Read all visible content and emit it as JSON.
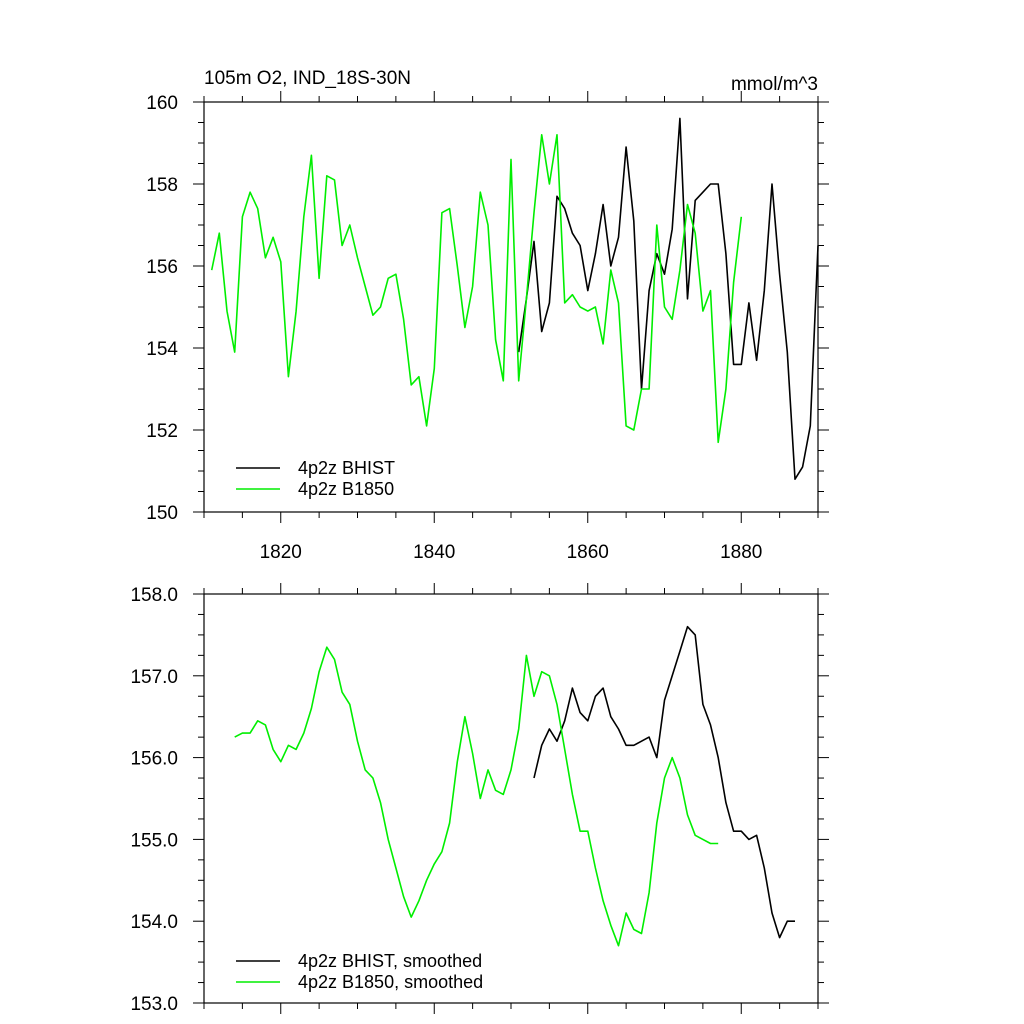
{
  "chart_data": [
    {
      "type": "line",
      "title": "105m O2, IND_18S-30N",
      "units": "mmol/m^3",
      "xlabel": "",
      "ylabel": "",
      "xlim": [
        1810,
        1890
      ],
      "ylim": [
        150,
        160
      ],
      "x_ticks": [
        1820,
        1840,
        1860,
        1880
      ],
      "y_ticks": [
        150,
        152,
        154,
        156,
        158,
        160
      ],
      "grid": false,
      "legend_position": "bottom-left",
      "series": [
        {
          "name": "4p2z BHIST",
          "color": "#000000",
          "x": [
            1851,
            1852,
            1853,
            1854,
            1855,
            1856,
            1857,
            1858,
            1859,
            1860,
            1861,
            1862,
            1863,
            1864,
            1865,
            1866,
            1867,
            1868,
            1869,
            1870,
            1871,
            1872,
            1873,
            1874,
            1875,
            1876,
            1877,
            1878,
            1879,
            1880,
            1881,
            1882,
            1883,
            1884,
            1885,
            1886,
            1887,
            1888,
            1889,
            1890
          ],
          "y": [
            153.9,
            155.2,
            156.6,
            154.4,
            155.1,
            157.7,
            157.4,
            156.8,
            156.5,
            155.4,
            156.3,
            157.5,
            156.0,
            156.7,
            158.9,
            157.1,
            153.0,
            155.4,
            156.3,
            155.8,
            156.9,
            159.6,
            155.2,
            157.6,
            157.8,
            158.0,
            158.0,
            156.3,
            153.6,
            153.6,
            155.1,
            153.7,
            155.4,
            158.0,
            155.8,
            153.9,
            150.8,
            151.1,
            152.1,
            156.5
          ]
        },
        {
          "name": "4p2z B1850",
          "color": "#00ee00",
          "x": [
            1811,
            1812,
            1813,
            1814,
            1815,
            1816,
            1817,
            1818,
            1819,
            1820,
            1821,
            1822,
            1823,
            1824,
            1825,
            1826,
            1827,
            1828,
            1829,
            1830,
            1831,
            1832,
            1833,
            1834,
            1835,
            1836,
            1837,
            1838,
            1839,
            1840,
            1841,
            1842,
            1843,
            1844,
            1845,
            1846,
            1847,
            1848,
            1849,
            1850,
            1851,
            1852,
            1853,
            1854,
            1855,
            1856,
            1857,
            1858,
            1859,
            1860,
            1861,
            1862,
            1863,
            1864,
            1865,
            1866,
            1867,
            1868,
            1869,
            1870,
            1871,
            1872,
            1873,
            1874,
            1875,
            1876,
            1877,
            1878,
            1879,
            1880
          ],
          "y": [
            155.9,
            156.8,
            154.9,
            153.9,
            157.2,
            157.8,
            157.4,
            156.2,
            156.7,
            156.1,
            153.3,
            154.9,
            157.2,
            158.7,
            155.7,
            158.2,
            158.1,
            156.5,
            157.0,
            156.2,
            155.5,
            154.8,
            155.0,
            155.7,
            155.8,
            154.7,
            153.1,
            153.3,
            152.1,
            153.5,
            157.3,
            157.4,
            156.0,
            154.5,
            155.5,
            157.8,
            157.0,
            154.2,
            153.2,
            158.6,
            153.2,
            155.2,
            157.3,
            159.2,
            158.0,
            159.2,
            155.1,
            155.3,
            155.0,
            154.9,
            155.0,
            154.1,
            155.9,
            155.1,
            152.1,
            152.0,
            153.0,
            153.0,
            157.0,
            155.0,
            154.7,
            155.9,
            157.5,
            156.8,
            154.9,
            155.4,
            151.7,
            153.0,
            155.6,
            157.2
          ]
        }
      ]
    },
    {
      "type": "line",
      "title": "",
      "xlabel": "",
      "ylabel": "",
      "xlim": [
        1810,
        1890
      ],
      "ylim": [
        153.0,
        158.0
      ],
      "x_ticks": [
        1820,
        1840,
        1860,
        1880
      ],
      "y_ticks": [
        "153.0",
        "154.0",
        "155.0",
        "156.0",
        "157.0",
        "158.0"
      ],
      "grid": false,
      "legend_position": "bottom-left",
      "series": [
        {
          "name": "4p2z BHIST, smoothed",
          "color": "#000000",
          "x": [
            1853,
            1854,
            1855,
            1856,
            1857,
            1858,
            1859,
            1860,
            1861,
            1862,
            1863,
            1864,
            1865,
            1866,
            1867,
            1868,
            1869,
            1870,
            1871,
            1872,
            1873,
            1874,
            1875,
            1876,
            1877,
            1878,
            1879,
            1880,
            1881,
            1882,
            1883,
            1884,
            1885,
            1886,
            1887
          ],
          "y": [
            155.75,
            156.15,
            156.35,
            156.2,
            156.45,
            156.85,
            156.55,
            156.45,
            156.75,
            156.85,
            156.5,
            156.35,
            156.15,
            156.15,
            156.2,
            156.25,
            156.0,
            156.7,
            157.0,
            157.3,
            157.6,
            157.5,
            156.65,
            156.4,
            156.0,
            155.45,
            155.1,
            155.1,
            155.0,
            155.05,
            154.65,
            154.1,
            153.8,
            154.0,
            154.0
          ]
        },
        {
          "name": "4p2z B1850, smoothed",
          "color": "#00ee00",
          "x": [
            1814,
            1815,
            1816,
            1817,
            1818,
            1819,
            1820,
            1821,
            1822,
            1823,
            1824,
            1825,
            1826,
            1827,
            1828,
            1829,
            1830,
            1831,
            1832,
            1833,
            1834,
            1835,
            1836,
            1837,
            1838,
            1839,
            1840,
            1841,
            1842,
            1843,
            1844,
            1845,
            1846,
            1847,
            1848,
            1849,
            1850,
            1851,
            1852,
            1853,
            1854,
            1855,
            1856,
            1857,
            1858,
            1859,
            1860,
            1861,
            1862,
            1863,
            1864,
            1865,
            1866,
            1867,
            1868,
            1869,
            1870,
            1871,
            1872,
            1873,
            1874,
            1875,
            1876,
            1877
          ],
          "y": [
            156.25,
            156.3,
            156.3,
            156.45,
            156.4,
            156.1,
            155.95,
            156.15,
            156.1,
            156.3,
            156.6,
            157.05,
            157.35,
            157.2,
            156.8,
            156.65,
            156.2,
            155.85,
            155.75,
            155.45,
            155.0,
            154.65,
            154.3,
            154.05,
            154.25,
            154.5,
            154.7,
            154.85,
            155.2,
            155.95,
            156.5,
            156.05,
            155.5,
            155.85,
            155.6,
            155.55,
            155.85,
            156.35,
            157.25,
            156.75,
            157.05,
            157.0,
            156.65,
            156.1,
            155.55,
            155.1,
            155.1,
            154.65,
            154.25,
            153.95,
            153.7,
            154.1,
            153.9,
            153.85,
            154.35,
            155.2,
            155.75,
            156.0,
            155.75,
            155.3,
            155.05,
            155.0,
            154.95,
            154.95
          ]
        }
      ]
    }
  ]
}
